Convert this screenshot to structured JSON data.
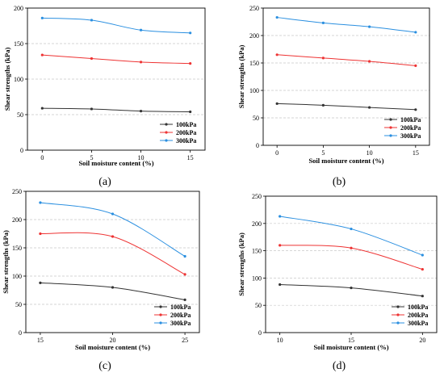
{
  "chart_data": [
    {
      "type": "line",
      "caption": "(a)",
      "xlabel": "Soil moisture content (%)",
      "ylabel": "Shear strengths (kPa)",
      "x": [
        0,
        5,
        10,
        15
      ],
      "xlim": [
        -1.5,
        16.5
      ],
      "ylim": [
        0,
        200
      ],
      "yticks": [
        0,
        50,
        100,
        150,
        200
      ],
      "grid": true,
      "legend": "bottom-right",
      "series": [
        {
          "name": "100kPa",
          "color": "#333333",
          "values": [
            59,
            58,
            55,
            54
          ]
        },
        {
          "name": "200kPa",
          "color": "#ee3333",
          "values": [
            134,
            129,
            124,
            122
          ]
        },
        {
          "name": "300kPa",
          "color": "#2a8fe0",
          "values": [
            186,
            183,
            169,
            165
          ]
        }
      ]
    },
    {
      "type": "line",
      "caption": "(b)",
      "xlabel": "Soil moisture content (%)",
      "ylabel": "Shear strengths (kPa)",
      "x": [
        0,
        5,
        10,
        15
      ],
      "xlim": [
        -1.5,
        16.5
      ],
      "ylim": [
        0,
        250
      ],
      "yticks": [
        0,
        50,
        100,
        150,
        200,
        250
      ],
      "grid": true,
      "legend": "bottom-right",
      "series": [
        {
          "name": "100kPa",
          "color": "#333333",
          "values": [
            76,
            73,
            69,
            65
          ]
        },
        {
          "name": "200kPa",
          "color": "#ee3333",
          "values": [
            165,
            159,
            153,
            145
          ]
        },
        {
          "name": "300kPa",
          "color": "#2a8fe0",
          "values": [
            233,
            223,
            216,
            206
          ]
        }
      ]
    },
    {
      "type": "line",
      "caption": "(c)",
      "xlabel": "Soil moisture content (%)",
      "ylabel": "Shear strengths (kPa)",
      "x": [
        15,
        20,
        25
      ],
      "xlim": [
        14,
        26
      ],
      "ylim": [
        0,
        250
      ],
      "yticks": [
        0,
        50,
        100,
        150,
        200,
        250
      ],
      "grid": true,
      "legend": "bottom-right",
      "series": [
        {
          "name": "100kPa",
          "color": "#333333",
          "values": [
            88,
            80,
            58
          ]
        },
        {
          "name": "200kPa",
          "color": "#ee3333",
          "values": [
            175,
            170,
            103
          ]
        },
        {
          "name": "300kPa",
          "color": "#2a8fe0",
          "values": [
            230,
            210,
            135
          ]
        }
      ]
    },
    {
      "type": "line",
      "caption": "(d)",
      "xlabel": "Soil moisture content (%)",
      "ylabel": "Shear strengths (kPa)",
      "x": [
        10,
        15,
        20
      ],
      "xlim": [
        9,
        21
      ],
      "ylim": [
        0,
        250
      ],
      "yticks": [
        0,
        50,
        100,
        150,
        200,
        250
      ],
      "grid": true,
      "legend": "bottom-right",
      "series": [
        {
          "name": "100kPa",
          "color": "#333333",
          "values": [
            88,
            82,
            67
          ]
        },
        {
          "name": "200kPa",
          "color": "#ee3333",
          "values": [
            160,
            155,
            116
          ]
        },
        {
          "name": "300kPa",
          "color": "#2a8fe0",
          "values": [
            213,
            190,
            142
          ]
        }
      ]
    }
  ]
}
